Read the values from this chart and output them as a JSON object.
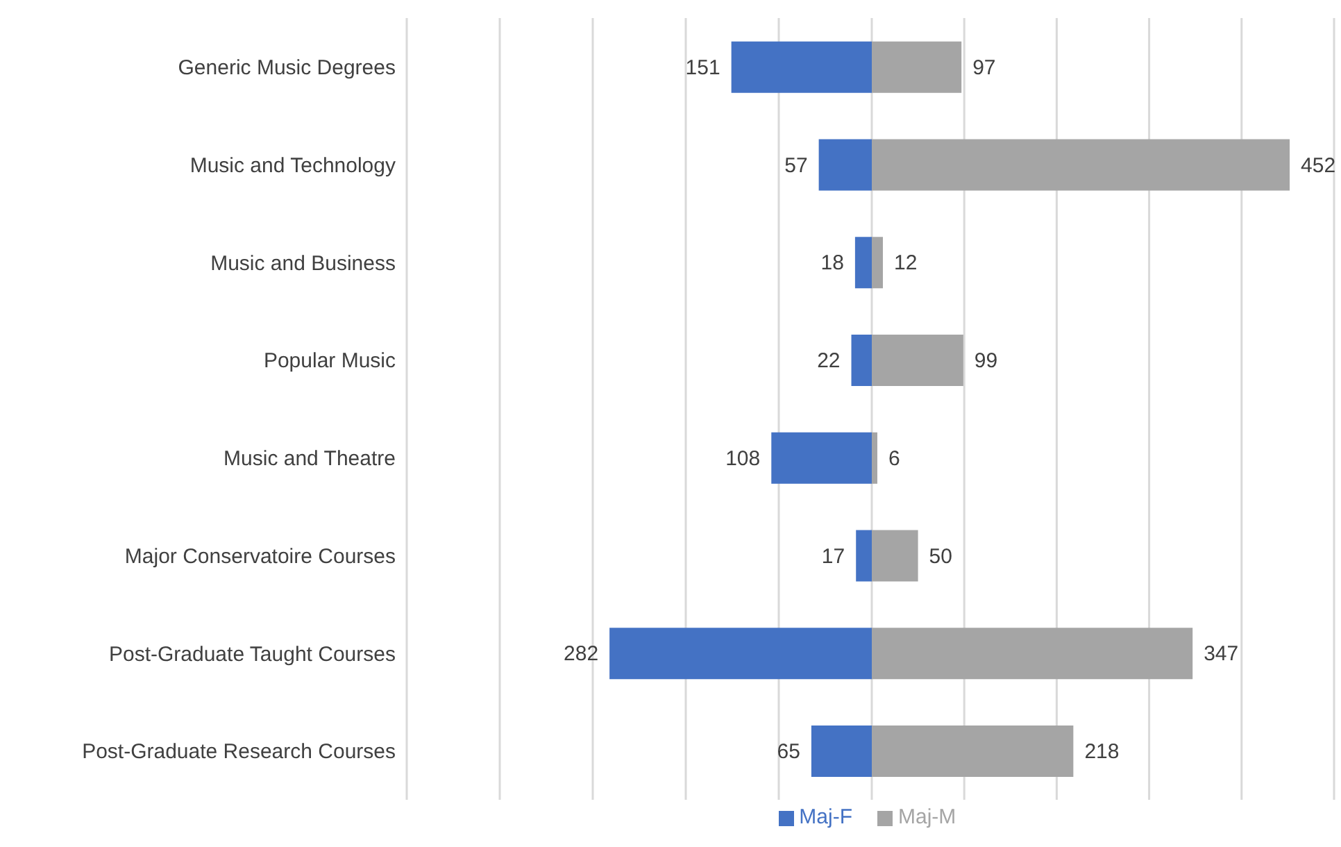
{
  "chart_data": [
    {
      "type": "bar",
      "orientation": "horizontal",
      "categories": [
        "Generic Music Degrees",
        "Music and Technology",
        "Music and Business",
        "Popular Music",
        "Music and Theatre",
        "Major Conservatoire Courses",
        "Post-Graduate Taught Courses",
        "Post-Graduate Research Courses"
      ],
      "series": [
        {
          "name": "Maj-F",
          "color": "#4472c4",
          "values": [
            151,
            57,
            18,
            22,
            108,
            17,
            282,
            65
          ]
        }
      ],
      "data_labels": true,
      "xlim": [
        500,
        0
      ],
      "tick_labels": "y",
      "grid": "x",
      "legend": "bottom"
    },
    {
      "type": "bar",
      "orientation": "horizontal",
      "categories": [
        null,
        null,
        null,
        null,
        null,
        null,
        null,
        null
      ],
      "series": [
        {
          "name": "Maj-M",
          "color": "#a5a5a5",
          "values": [
            97,
            452,
            12,
            99,
            6,
            50,
            347,
            218
          ]
        }
      ],
      "data_labels": true,
      "xlim": [
        0,
        500
      ],
      "tick_labels": false,
      "grid": "x",
      "legend": "bottom"
    }
  ]
}
